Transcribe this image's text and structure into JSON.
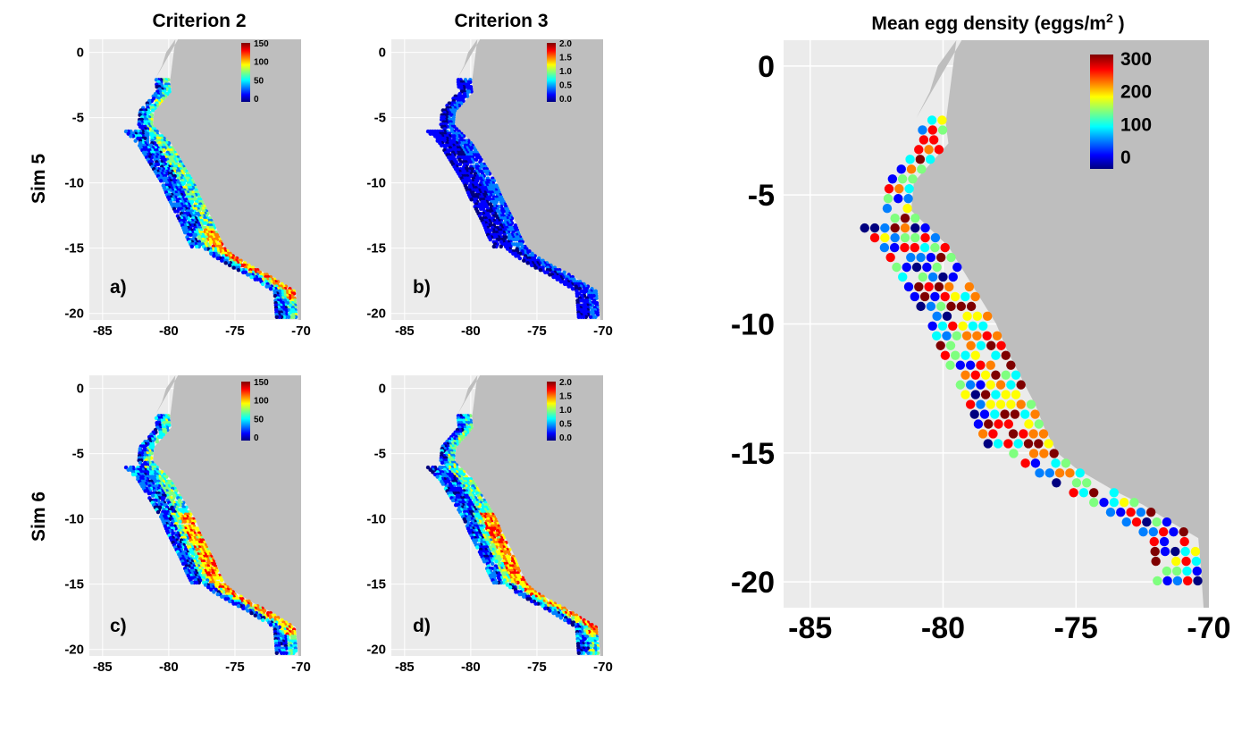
{
  "figure": {
    "column_titles": [
      "Criterion 2",
      "Criterion 3"
    ],
    "row_labels": [
      "Sim 5",
      "Sim 6"
    ],
    "panel_labels": [
      "a)",
      "b)",
      "c)",
      "d)"
    ],
    "big_title_prefix": "Mean egg density (eggs/m",
    "big_title_sup": "2",
    "big_title_suffix": " )"
  },
  "chart_data": [
    {
      "type": "heatmap",
      "panel": "a)",
      "title": "Criterion 2",
      "row": "Sim 5",
      "xticks": [
        "-85",
        "-80",
        "-75",
        "-70"
      ],
      "yticks": [
        "0",
        "-5",
        "-10",
        "-15",
        "-20"
      ],
      "legend": [
        "150",
        "100",
        "50",
        "0"
      ],
      "xlim": [
        -86,
        -70
      ],
      "ylim": [
        -20.5,
        1
      ]
    },
    {
      "type": "heatmap",
      "panel": "b)",
      "title": "Criterion 3",
      "row": "Sim 5",
      "xticks": [
        "-85",
        "-80",
        "-75",
        "-70"
      ],
      "yticks": [
        "0",
        "-5",
        "-10",
        "-15",
        "-20"
      ],
      "legend": [
        "2.0",
        "1.5",
        "1.0",
        "0.5",
        "0.0"
      ],
      "xlim": [
        -86,
        -70
      ],
      "ylim": [
        -20.5,
        1
      ]
    },
    {
      "type": "heatmap",
      "panel": "c)",
      "row": "Sim 6",
      "xticks": [
        "-85",
        "-80",
        "-75",
        "-70"
      ],
      "yticks": [
        "0",
        "-5",
        "-10",
        "-15",
        "-20"
      ],
      "legend": [
        "150",
        "100",
        "50",
        "0"
      ],
      "xlim": [
        -86,
        -70
      ],
      "ylim": [
        -20.5,
        1
      ]
    },
    {
      "type": "heatmap",
      "panel": "d)",
      "row": "Sim 6",
      "xticks": [
        "-85",
        "-80",
        "-75",
        "-70"
      ],
      "yticks": [
        "0",
        "-5",
        "-10",
        "-15",
        "-20"
      ],
      "legend": [
        "2.0",
        "1.5",
        "1.0",
        "0.5",
        "0.0"
      ],
      "xlim": [
        -86,
        -70
      ],
      "ylim": [
        -20.5,
        1
      ]
    },
    {
      "type": "heatmap",
      "panel": "big",
      "title": "Mean egg density (eggs/m2 )",
      "xticks": [
        "-85",
        "-80",
        "-75",
        "-70"
      ],
      "yticks": [
        "0",
        "-5",
        "-10",
        "-15",
        "-20"
      ],
      "legend": [
        "300",
        "200",
        "100",
        "0"
      ],
      "xlim": [
        -86,
        -70
      ],
      "ylim": [
        -21,
        1
      ]
    }
  ],
  "colors": {
    "land": "#bebebe",
    "ocean_panel": "#ebebeb",
    "grid": "#ffffff",
    "scale": [
      "#00007f",
      "#0000ff",
      "#007fff",
      "#00ffff",
      "#7fff7f",
      "#ffff00",
      "#ff7f00",
      "#ff0000",
      "#7f0000"
    ]
  }
}
